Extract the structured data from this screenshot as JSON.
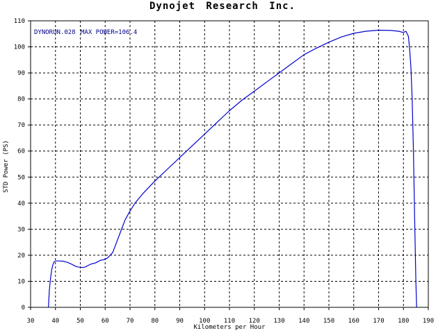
{
  "chart_data": {
    "type": "line",
    "title": "Dynojet  Research  Inc.",
    "xlabel": "Kilometers per Hour",
    "ylabel": "STD Power (PS)",
    "xlim": [
      30,
      190
    ],
    "ylim": [
      0,
      110
    ],
    "xticks": [
      30,
      40,
      50,
      60,
      70,
      80,
      90,
      100,
      110,
      120,
      130,
      140,
      150,
      160,
      170,
      180,
      190
    ],
    "yticks": [
      0,
      10,
      20,
      30,
      40,
      50,
      60,
      70,
      80,
      90,
      100,
      110
    ],
    "grid": true,
    "annotation_run": "DYNORUN.028",
    "annotation_max": "MAX POWER=106.4",
    "series": [
      {
        "color": "#0000cd",
        "x": [
          37.2,
          37.5,
          38,
          38.5,
          39,
          39.5,
          40,
          41,
          42,
          43,
          44,
          45,
          46,
          47,
          48,
          49,
          50,
          51,
          52,
          53,
          54,
          55,
          56,
          57,
          58,
          59,
          60,
          61,
          62,
          63,
          64,
          65,
          66,
          67,
          68,
          70,
          72,
          75,
          78,
          80,
          85,
          90,
          95,
          100,
          105,
          110,
          115,
          120,
          125,
          130,
          135,
          140,
          145,
          150,
          155,
          160,
          165,
          170,
          175,
          178,
          180,
          181,
          182,
          182.5,
          183,
          183.5,
          184,
          184.5,
          185,
          185.3
        ],
        "y": [
          0,
          6,
          11,
          14.5,
          16.5,
          17.5,
          17.8,
          17.8,
          17.8,
          17.7,
          17.5,
          17.2,
          16.8,
          16.3,
          15.8,
          15.5,
          15.4,
          15.3,
          15.5,
          16.0,
          16.5,
          16.8,
          17.0,
          17.5,
          18.0,
          18.2,
          18.5,
          19.0,
          20.0,
          21.0,
          23.5,
          26.0,
          28.5,
          31.0,
          33.5,
          37.0,
          40.0,
          43.5,
          46.5,
          48.5,
          53.0,
          57.5,
          62.0,
          66.5,
          71.0,
          75.5,
          79.5,
          83.0,
          86.5,
          90.0,
          93.5,
          97.0,
          99.5,
          101.8,
          103.8,
          105.2,
          106.0,
          106.4,
          106.3,
          106.0,
          105.5,
          106.0,
          104.0,
          99.0,
          92.0,
          80.0,
          60.0,
          35.0,
          10.0,
          0
        ]
      }
    ]
  }
}
